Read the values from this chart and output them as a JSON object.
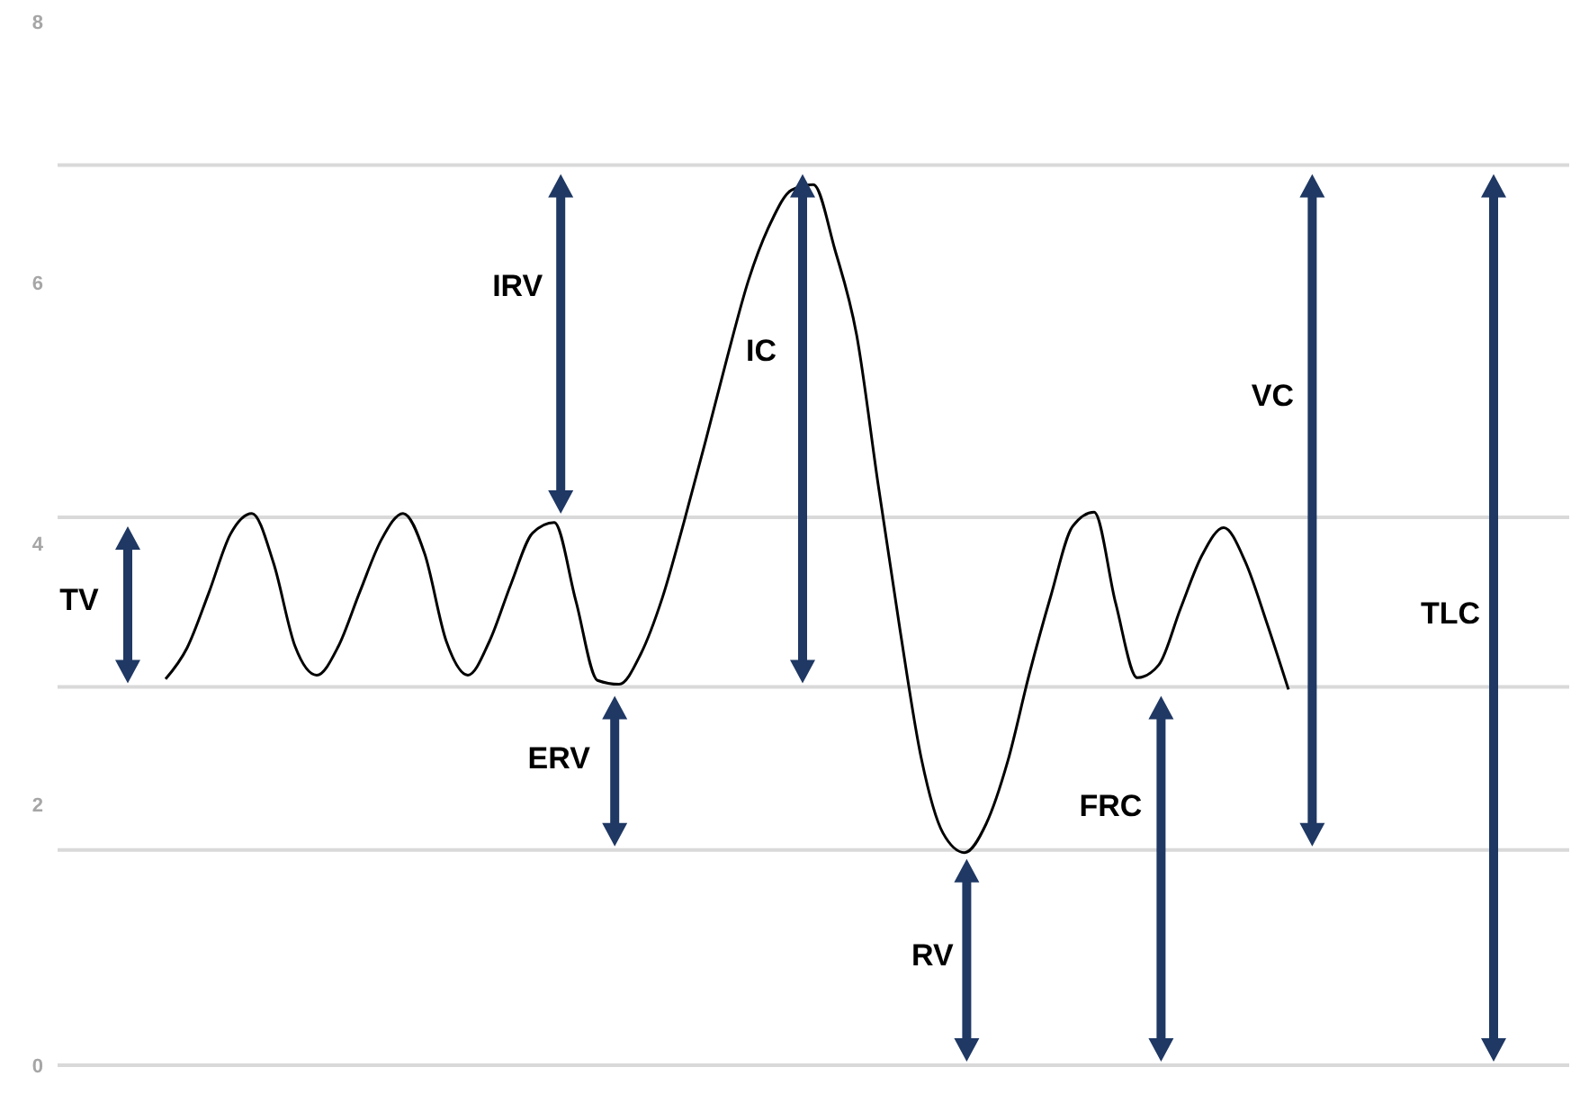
{
  "chart_data": {
    "type": "line",
    "categories": [
      null,
      null,
      null,
      null,
      null,
      null,
      null,
      null,
      null,
      null,
      null,
      null,
      null,
      null,
      null,
      null,
      null,
      null,
      null,
      null,
      null,
      null,
      null,
      null,
      null,
      null,
      null,
      null,
      null,
      null,
      null,
      null,
      null,
      null,
      null,
      null,
      null,
      null,
      null,
      null,
      null,
      null,
      null,
      null,
      null,
      null,
      null,
      null,
      null,
      null,
      null,
      null,
      null,
      null,
      null,
      null,
      null,
      null,
      null,
      null,
      null,
      null,
      null,
      null,
      null,
      null,
      null,
      null,
      null,
      null,
      null
    ],
    "series": [
      {
        "color": "#000000",
        "values": [
          null,
          null,
          null,
          null,
          null,
          2.96,
          3.2,
          3.62,
          4.07,
          4.23,
          3.85,
          3.21,
          2.99,
          3.21,
          3.63,
          4.03,
          4.23,
          3.92,
          3.25,
          2.99,
          3.25,
          3.69,
          4.08,
          4.16,
          3.56,
          2.95,
          2.92,
          3.15,
          3.58,
          4.16,
          4.78,
          5.42,
          6.02,
          6.45,
          6.71,
          6.75,
          6.25,
          5.6,
          4.45,
          3.35,
          2.35,
          1.78,
          1.63,
          1.85,
          2.33,
          3.0,
          3.6,
          4.13,
          4.24,
          3.54,
          2.97,
          3.07,
          3.5,
          3.91,
          4.12,
          3.86,
          3.39,
          2.88,
          null,
          null,
          null,
          null,
          null,
          null,
          null,
          null,
          null,
          null,
          null,
          null,
          null
        ]
      }
    ],
    "ylim": [
      0,
      8
    ],
    "yticks": [
      0,
      2,
      4,
      6,
      8
    ],
    "tick_labels": "y",
    "marker": "none",
    "line_style": "solid",
    "ref_lines": [
      {
        "axis": "y",
        "value": 6.9,
        "color": "#d9d9d9"
      },
      {
        "axis": "y",
        "value": 4.2,
        "color": "#d9d9d9"
      },
      {
        "axis": "y",
        "value": 2.9,
        "color": "#d9d9d9"
      },
      {
        "axis": "y",
        "value": 1.65,
        "color": "#d9d9d9"
      },
      {
        "axis": "y",
        "value": 0,
        "color": "#d9d9d9"
      }
    ],
    "annotations": [
      "TV",
      "IRV",
      "ERV",
      "IC",
      "RV",
      "FRC",
      "VC",
      "TLC"
    ]
  }
}
